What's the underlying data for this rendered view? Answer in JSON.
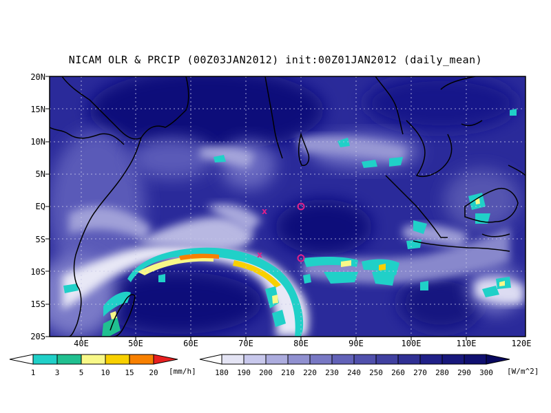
{
  "title": "NICAM OLR & PRCIP (00Z03JAN2012) init:00Z01JAN2012 (daily_mean)",
  "lat_labels": [
    "20N",
    "15N",
    "10N",
    "5N",
    "EQ",
    "5S",
    "10S",
    "15S",
    "20S"
  ],
  "lon_labels": [
    "40E",
    "50E",
    "60E",
    "70E",
    "80E",
    "90E",
    "100E",
    "110E",
    "120E"
  ],
  "precip_colorbar": {
    "labels": [
      "1",
      "3",
      "5",
      "10",
      "15",
      "20"
    ],
    "unit": "[mm/h]",
    "colors": [
      "#ffffff",
      "#20d0c8",
      "#20c090",
      "#f8f888",
      "#f8d000",
      "#f88000",
      "#e82020"
    ]
  },
  "olr_colorbar": {
    "labels": [
      "180",
      "190",
      "200",
      "210",
      "220",
      "230",
      "240",
      "250",
      "260",
      "270",
      "280",
      "290",
      "300"
    ],
    "unit": "[W/m^2]",
    "colors": [
      "#ffffff",
      "#e4e4f4",
      "#c8c8ec",
      "#acacde",
      "#9090d0",
      "#7878c4",
      "#6262b8",
      "#5050ac",
      "#4040a0",
      "#303094",
      "#202088",
      "#18187c",
      "#101070",
      "#08085e"
    ]
  },
  "markers": [
    {
      "symbol": "x",
      "lon": 73,
      "lat": -0.7
    },
    {
      "symbol": "x",
      "lon": 72.5,
      "lat": -7.5
    },
    {
      "symbol": "o",
      "lon": 80,
      "lat": 0
    },
    {
      "symbol": "o",
      "lon": 80,
      "lat": -8
    }
  ]
}
